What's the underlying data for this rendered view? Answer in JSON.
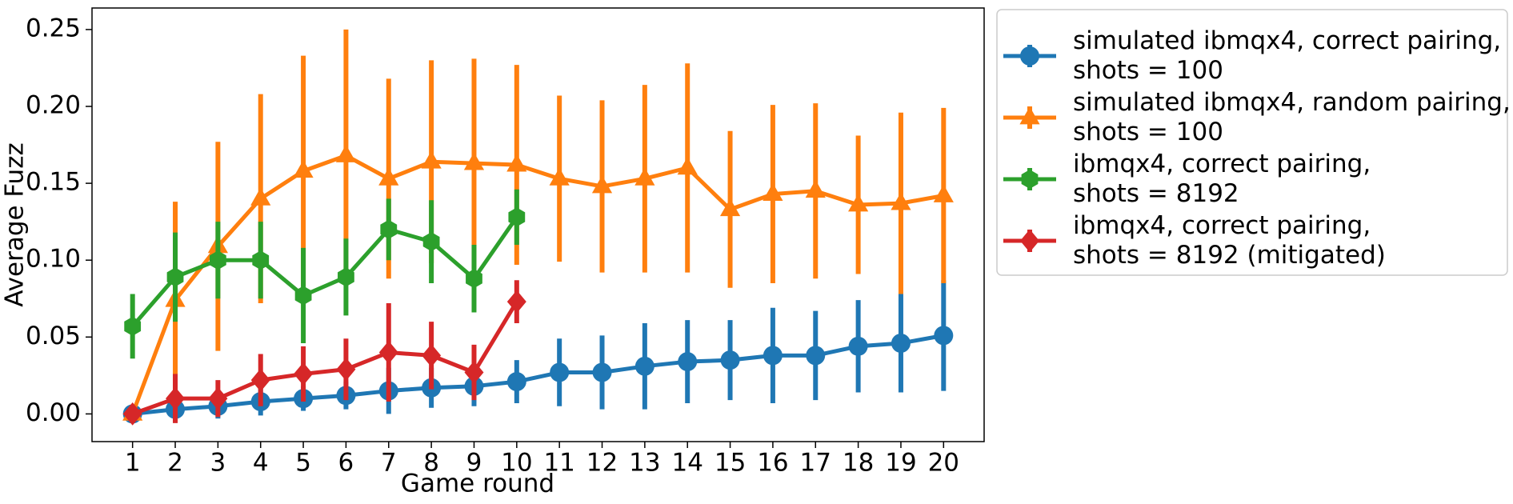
{
  "chart_data": {
    "type": "errorbar-line",
    "xlabel": "Game round",
    "ylabel": "Average Fuzz",
    "x": [
      1,
      2,
      3,
      4,
      5,
      6,
      7,
      8,
      9,
      10,
      11,
      12,
      13,
      14,
      15,
      16,
      17,
      18,
      19,
      20
    ],
    "xlim": [
      0.05,
      20.95
    ],
    "xticks": [
      1,
      2,
      3,
      4,
      5,
      6,
      7,
      8,
      9,
      10,
      11,
      12,
      13,
      14,
      15,
      16,
      17,
      18,
      19,
      20
    ],
    "ylim": [
      -0.018,
      0.264
    ],
    "yticks": [
      {
        "value": 0,
        "label": "0.00"
      },
      0.05,
      {
        "value": 0.1,
        "label": "0.10"
      },
      0.15,
      {
        "value": 0.2,
        "label": "0.20"
      },
      0.25
    ],
    "legend": "outside upper right",
    "series": [
      {
        "name": "simulated ibmqx4, correct pairing,\nshots = 100",
        "color": "#1f77b4",
        "marker": "circle",
        "values": [
          0.0,
          0.003,
          0.005,
          0.008,
          0.01,
          0.012,
          0.015,
          0.017,
          0.018,
          0.021,
          0.027,
          0.027,
          0.031,
          0.034,
          0.035,
          0.038,
          0.038,
          0.044,
          0.046,
          0.051
        ],
        "errors": [
          0,
          0.008,
          0.008,
          0.009,
          0.008,
          0.009,
          0.015,
          0.013,
          0.013,
          0.014,
          0.022,
          0.024,
          0.028,
          0.027,
          0.026,
          0.031,
          0.029,
          0.03,
          0.032,
          0.036
        ]
      },
      {
        "name": "simulated ibmqx4, random pairing,\nshots = 100",
        "color": "#ff7f0e",
        "marker": "triangle",
        "values": [
          0.0,
          0.074,
          0.109,
          0.14,
          0.158,
          0.168,
          0.153,
          0.164,
          0.163,
          0.162,
          0.153,
          0.148,
          0.153,
          0.16,
          0.133,
          0.143,
          0.145,
          0.136,
          0.137,
          0.142
        ],
        "errors": [
          0,
          0.064,
          0.068,
          0.068,
          0.075,
          0.082,
          0.065,
          0.066,
          0.068,
          0.065,
          0.054,
          0.056,
          0.061,
          0.068,
          0.051,
          0.058,
          0.057,
          0.045,
          0.059,
          0.057
        ]
      },
      {
        "name": "ibmqx4, correct pairing,\nshots = 8192",
        "color": "#2ca02c",
        "marker": "hexagon",
        "values": [
          0.057,
          0.089,
          0.1,
          0.1,
          0.077,
          0.089,
          0.12,
          0.112,
          0.088,
          0.128,
          null,
          null,
          null,
          null,
          null,
          null,
          null,
          null,
          null,
          null
        ],
        "errors": [
          0.021,
          0.029,
          0.025,
          0.025,
          0.031,
          0.025,
          0.02,
          0.027,
          0.022,
          0.018,
          null,
          null,
          null,
          null,
          null,
          null,
          null,
          null,
          null,
          null
        ]
      },
      {
        "name": "ibmqx4, correct pairing,\nshots = 8192 (mitigated)",
        "color": "#d62728",
        "marker": "diamond",
        "values": [
          0.0,
          0.01,
          0.01,
          0.022,
          0.026,
          0.029,
          0.04,
          0.038,
          0.027,
          0.073,
          null,
          null,
          null,
          null,
          null,
          null,
          null,
          null,
          null,
          null
        ],
        "errors": [
          0,
          0.016,
          0.012,
          0.017,
          0.018,
          0.02,
          0.032,
          0.022,
          0.018,
          0.014,
          null,
          null,
          null,
          null,
          null,
          null,
          null,
          null,
          null,
          null
        ]
      }
    ]
  }
}
